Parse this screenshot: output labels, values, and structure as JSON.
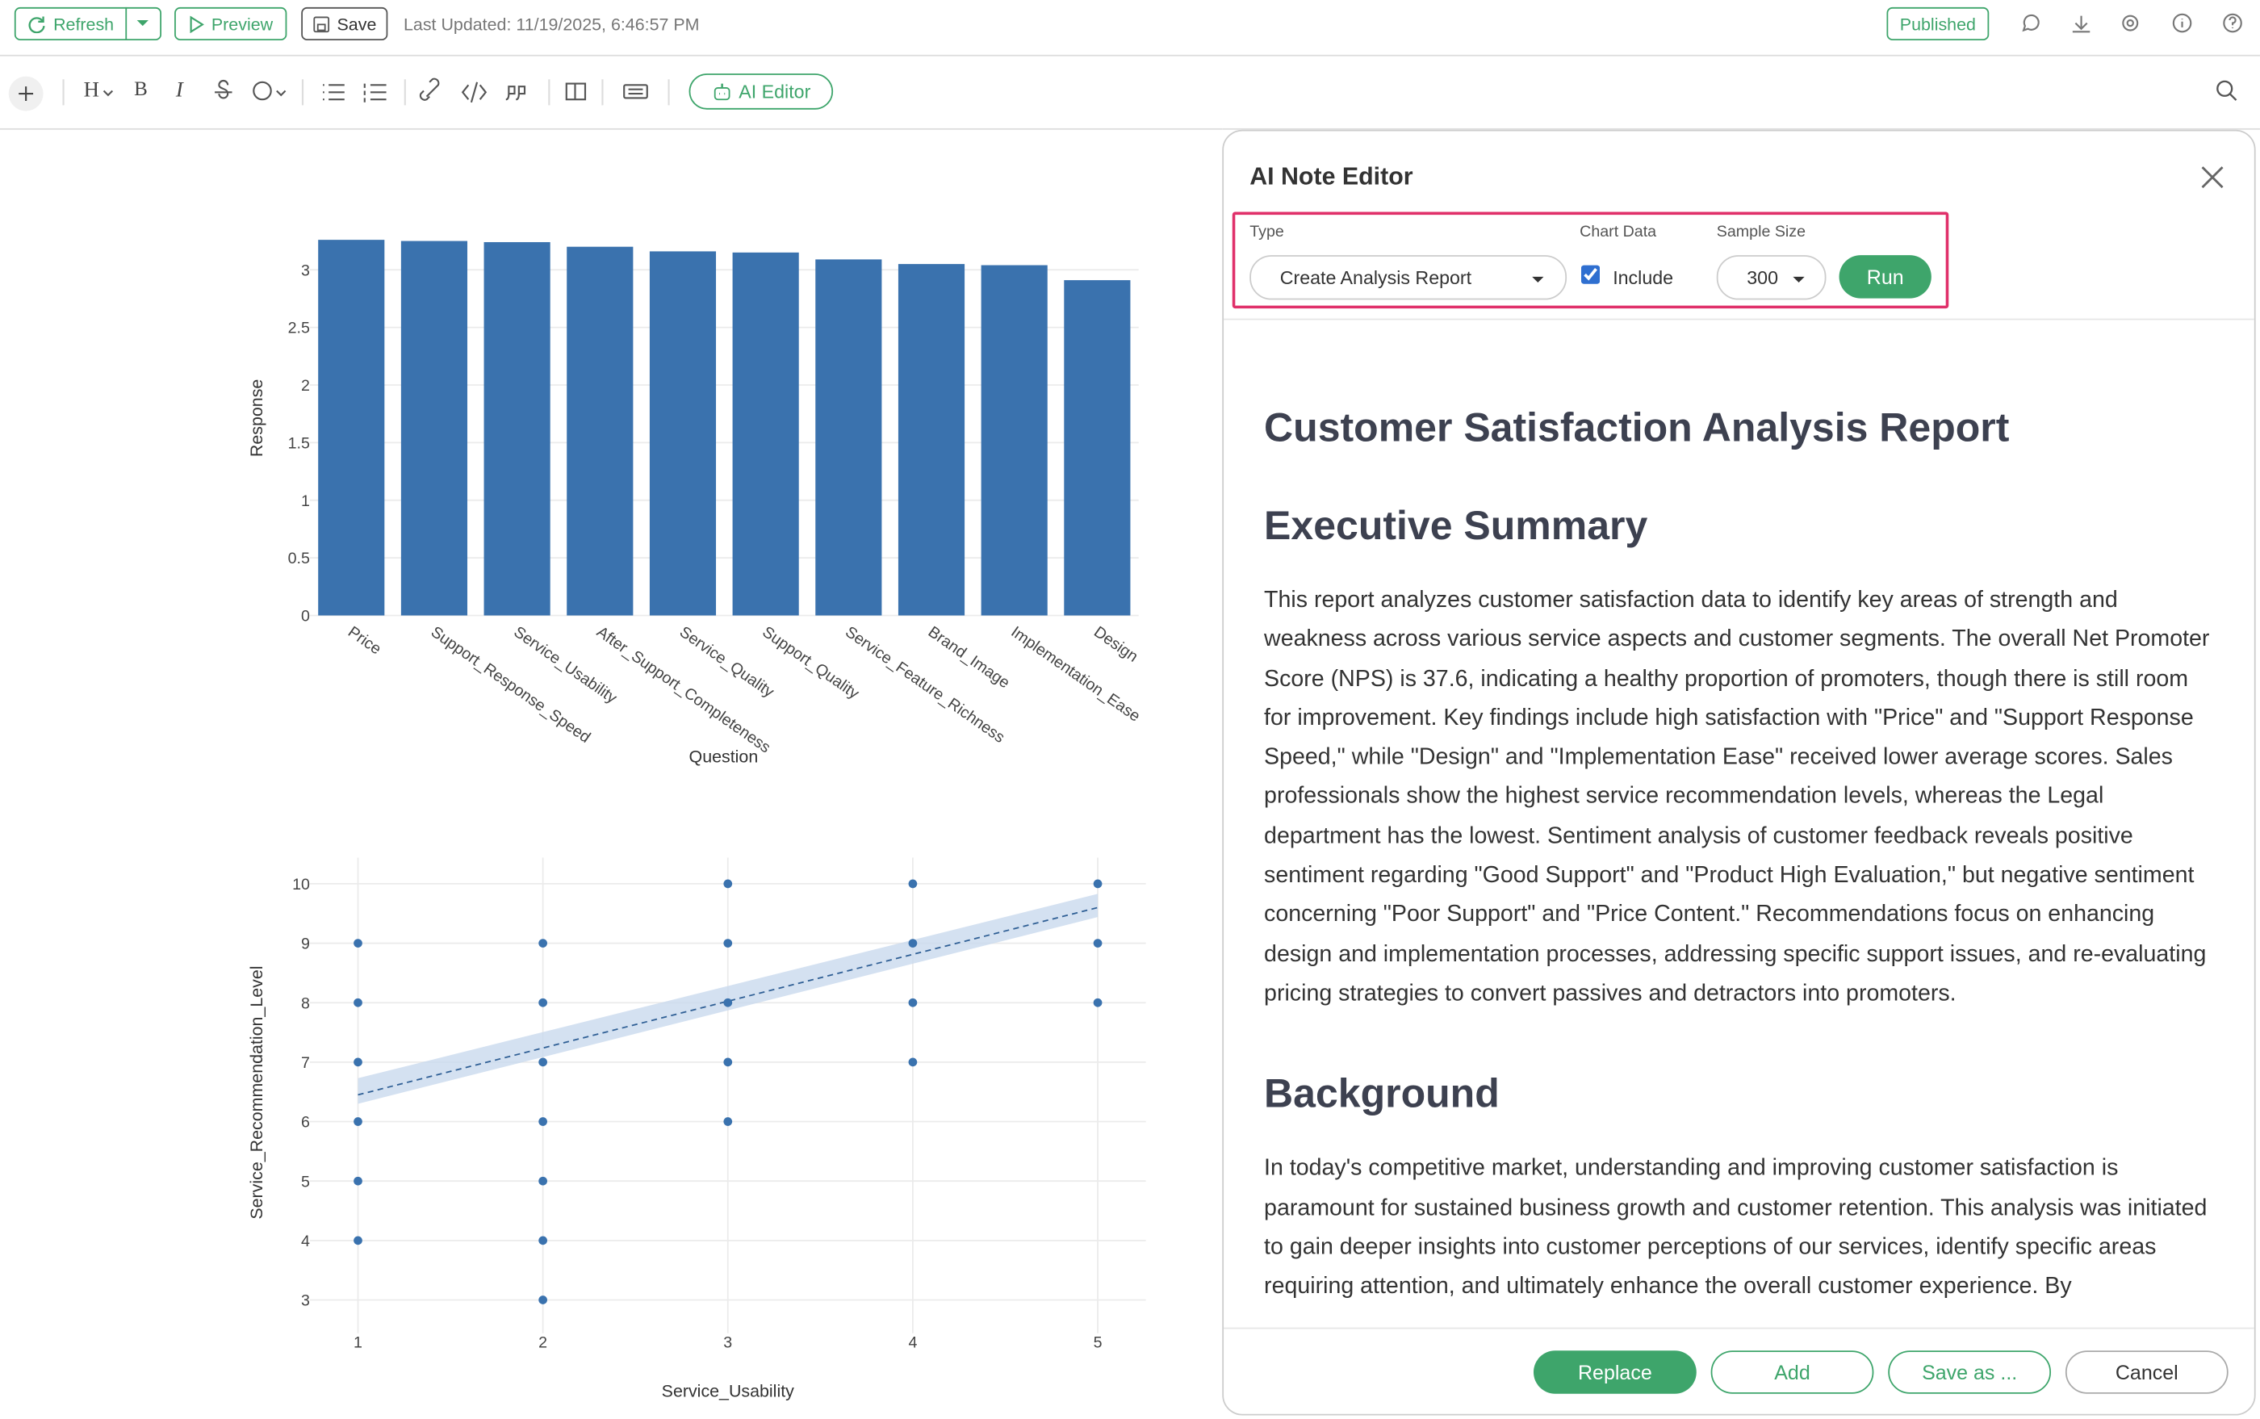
{
  "header": {
    "refresh": "Refresh",
    "preview": "Preview",
    "save": "Save",
    "last_updated": "Last Updated: 11/19/2025, 6:46:57 PM",
    "published": "Published"
  },
  "toolbar": {
    "heading": "H",
    "bold": "B",
    "italic": "I",
    "ai_editor": "AI Editor"
  },
  "editor": {
    "title": "AI Note Editor",
    "type_label": "Type",
    "type_value": "Create Analysis Report",
    "chart_data_label": "Chart Data",
    "include_label": "Include",
    "include_checked": true,
    "sample_size_label": "Sample Size",
    "sample_size": 300,
    "run": "Run",
    "report": {
      "title": "Customer Satisfaction Analysis Report",
      "sections": [
        {
          "heading": "Executive Summary",
          "paragraph": "This report analyzes customer satisfaction data to identify key areas of strength and weakness across various service aspects and customer segments. The overall Net Promoter Score (NPS) is 37.6, indicating a healthy proportion of promoters, though there is still room for improvement. Key findings include high satisfaction with \"Price\" and \"Support Response Speed,\" while \"Design\" and \"Implementation Ease\" received lower average scores. Sales professionals show the highest service recommendation levels, whereas the Legal department has the lowest. Sentiment analysis of customer feedback reveals positive sentiment regarding \"Good Support\" and \"Product High Evaluation,\" but negative sentiment concerning \"Poor Support\" and \"Price Content.\" Recommendations focus on enhancing design and implementation processes, addressing specific support issues, and re-evaluating pricing strategies to convert passives and detractors into promoters."
        },
        {
          "heading": "Background",
          "paragraph": "In today's competitive market, understanding and improving customer satisfaction is paramount for sustained business growth and customer retention. This analysis was initiated to gain deeper insights into customer perceptions of our services, identify specific areas requiring attention, and ultimately enhance the overall customer experience. By"
        }
      ]
    },
    "buttons": {
      "replace": "Replace",
      "add": "Add",
      "save_as": "Save as ...",
      "cancel": "Cancel"
    }
  },
  "chart_data": [
    {
      "type": "bar",
      "x_label": "Question",
      "y_label": "Response",
      "color": "#3a72ae",
      "categories": [
        "Price",
        "Support_Response_Speed",
        "Service_Usability",
        "After_Support_Completeness",
        "Service_Quality",
        "Support_Quality",
        "Service_Feature_Richness",
        "Brand_Image",
        "Implementation_Ease",
        "Design"
      ],
      "values": [
        3.26,
        3.25,
        3.24,
        3.2,
        3.16,
        3.15,
        3.09,
        3.05,
        3.04,
        2.91
      ],
      "ylim": [
        0,
        3.34
      ],
      "yticks": [
        0,
        0.5,
        1,
        1.5,
        2,
        2.5,
        3
      ],
      "grid": true
    },
    {
      "type": "scatter",
      "x_label": "Service_Usability",
      "y_label": "Service_Recommendation_Level",
      "color": "#3a72ae",
      "x": [
        1,
        1,
        1,
        1,
        1,
        1,
        2,
        2,
        2,
        2,
        2,
        2,
        2,
        3,
        3,
        3,
        3,
        3,
        4,
        4,
        4,
        4,
        5,
        5,
        5
      ],
      "y": [
        9,
        8,
        7,
        6,
        5,
        4,
        9,
        8,
        7,
        6,
        5,
        4,
        3,
        10,
        9,
        8,
        7,
        6,
        10,
        9,
        8,
        7,
        10,
        9,
        8
      ],
      "trendline": {
        "x": [
          1,
          5
        ],
        "y": [
          6.45,
          9.6
        ],
        "lower": [
          6.3,
          9.44
        ],
        "upper": [
          6.73,
          9.83
        ],
        "color": "#2f5f95",
        "band_color": "#c9d9ee"
      },
      "xlim": [
        0.74,
        5.26
      ],
      "ylim": [
        2.44,
        10.44
      ],
      "xticks": [
        1,
        2,
        3,
        4,
        5
      ],
      "yticks": [
        3,
        4,
        5,
        6,
        7,
        8,
        9,
        10
      ],
      "grid": true
    }
  ]
}
